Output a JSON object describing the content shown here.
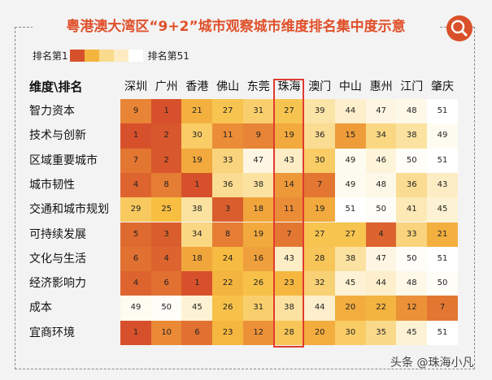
{
  "chart_data": {
    "type": "heatmap",
    "title": "粤港澳大湾区“9+2”城市观察城市维度排名集中度示意",
    "corner_label": "维度\\排名",
    "legend": {
      "low_label": "排名第1",
      "high_label": "排名第51",
      "colors": [
        "#d6512b",
        "#f4b53e",
        "#fadb8e",
        "#fdebc2",
        "#ffffff"
      ]
    },
    "columns": [
      "深圳",
      "广州",
      "香港",
      "佛山",
      "东莞",
      "珠海",
      "澳门",
      "中山",
      "惠州",
      "江门",
      "肇庆"
    ],
    "highlight_column": "珠海",
    "highlight_color": "#e03a30",
    "rows": [
      "智力资本",
      "技术与创新",
      "区域重要城市",
      "城市韧性",
      "交通和城市规划",
      "可持续发展",
      "文化与生活",
      "经济影响力",
      "成本",
      "宜商环境"
    ],
    "values": [
      [
        9,
        1,
        21,
        27,
        31,
        27,
        39,
        44,
        47,
        48,
        51
      ],
      [
        1,
        2,
        30,
        11,
        9,
        19,
        36,
        15,
        34,
        38,
        49
      ],
      [
        7,
        2,
        19,
        33,
        47,
        43,
        30,
        49,
        46,
        50,
        51
      ],
      [
        4,
        8,
        1,
        36,
        38,
        14,
        7,
        49,
        48,
        36,
        43
      ],
      [
        29,
        25,
        38,
        3,
        18,
        11,
        19,
        51,
        50,
        41,
        45
      ],
      [
        5,
        3,
        34,
        8,
        19,
        7,
        27,
        27,
        4,
        33,
        21
      ],
      [
        6,
        4,
        18,
        24,
        16,
        43,
        28,
        38,
        47,
        50,
        51
      ],
      [
        4,
        6,
        1,
        22,
        26,
        23,
        32,
        45,
        44,
        48,
        50
      ],
      [
        49,
        50,
        45,
        26,
        31,
        38,
        44,
        20,
        22,
        12,
        7
      ],
      [
        1,
        10,
        6,
        23,
        12,
        28,
        20,
        30,
        35,
        45,
        51
      ]
    ],
    "range": [
      1,
      51
    ]
  },
  "watermark": "头条 @珠海小凡"
}
